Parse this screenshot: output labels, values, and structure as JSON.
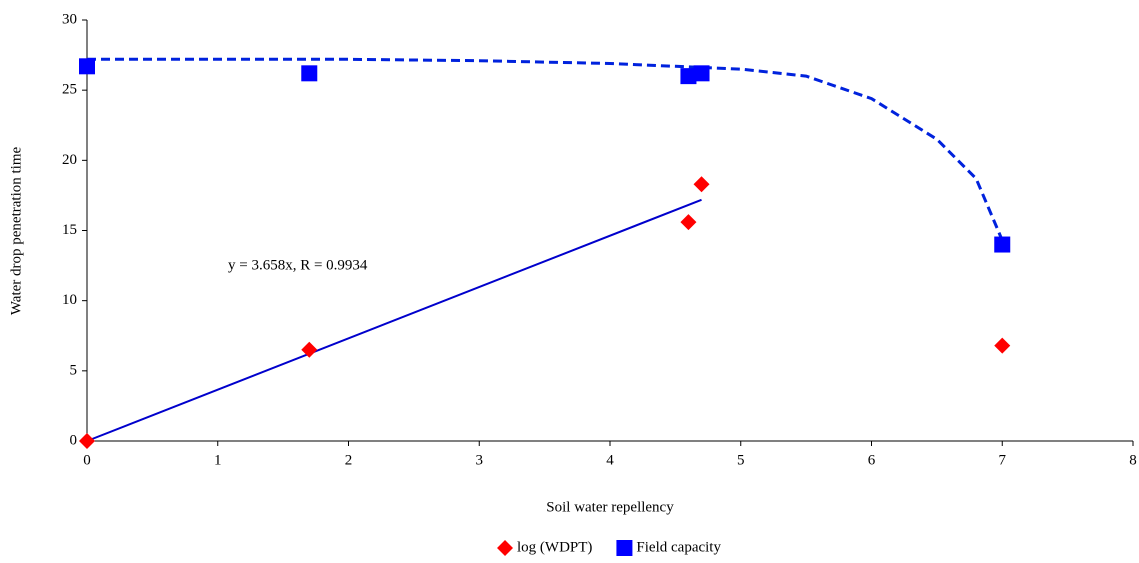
{
  "chart_data": {
    "type": "scatter",
    "xlabel": "Soil water repellency",
    "ylabel": "Water drop penetration time",
    "annotation": "y = 3.658x, R = 0.9934",
    "xlim": [
      0,
      8
    ],
    "xticks": [
      0,
      1,
      2,
      3,
      4,
      5,
      6,
      7,
      8
    ],
    "ylim": [
      0,
      30
    ],
    "yticks": [
      0,
      5,
      10,
      15,
      20,
      25,
      30
    ],
    "x": [
      0,
      1.7,
      4.6,
      4.7,
      7
    ],
    "series": [
      {
        "name": "log (WDPT)",
        "color": "#ff0000",
        "marker": "diamond",
        "values": [
          0,
          6.5,
          15.6,
          18.3,
          6.8
        ]
      },
      {
        "name": "Field capacity",
        "color": "#0000ff",
        "marker": "square",
        "values": [
          26.7,
          26.2,
          26.0,
          26.2,
          14.0
        ]
      }
    ],
    "trendlines": [
      {
        "color": "#0000cc",
        "style": "solid",
        "x": [
          0,
          4.7
        ],
        "values": [
          0,
          17.19
        ]
      },
      {
        "color": "#0022dd",
        "style": "dashed",
        "x": [
          0,
          1,
          2,
          3,
          4,
          4.5,
          5,
          5.5,
          6,
          6.5,
          6.8,
          7
        ],
        "values": [
          27.2,
          27.2,
          27.2,
          27.1,
          26.9,
          26.7,
          26.5,
          26.0,
          24.4,
          21.5,
          18.7,
          14.3
        ]
      }
    ],
    "legend": "bottom"
  }
}
